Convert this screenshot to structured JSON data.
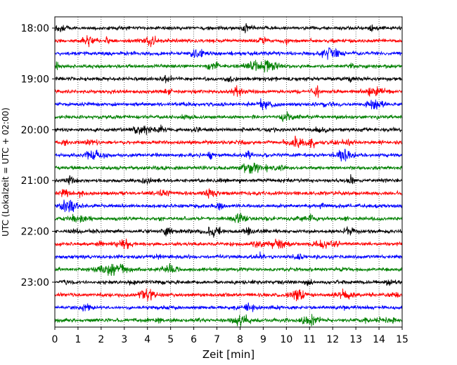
{
  "chart_data": {
    "type": "line",
    "title": "",
    "xlabel": "Zeit  [min]",
    "ylabel": "UTC (Lokalzeit = UTC + 02:00)",
    "xlim": [
      0,
      15
    ],
    "x_ticks": [
      "0",
      "1",
      "2",
      "3",
      "4",
      "5",
      "6",
      "7",
      "8",
      "9",
      "10",
      "11",
      "12",
      "13",
      "14",
      "15"
    ],
    "y_ticks": [
      "18:00",
      "19:00",
      "20:00",
      "21:00",
      "22:00",
      "23:00"
    ],
    "grid": "vertical-dotted",
    "trace_colors": [
      "#000000",
      "#ff0000",
      "#0000ff",
      "#008000"
    ],
    "rows_per_hour": 4,
    "series": [
      {
        "name": "18:00",
        "color": "#000000"
      },
      {
        "name": "18:15",
        "color": "#ff0000"
      },
      {
        "name": "18:30",
        "color": "#0000ff"
      },
      {
        "name": "18:45",
        "color": "#008000"
      },
      {
        "name": "19:00",
        "color": "#000000"
      },
      {
        "name": "19:15",
        "color": "#ff0000"
      },
      {
        "name": "19:30",
        "color": "#0000ff"
      },
      {
        "name": "19:45",
        "color": "#008000"
      },
      {
        "name": "20:00",
        "color": "#000000"
      },
      {
        "name": "20:15",
        "color": "#ff0000"
      },
      {
        "name": "20:30",
        "color": "#0000ff"
      },
      {
        "name": "20:45",
        "color": "#008000"
      },
      {
        "name": "21:00",
        "color": "#000000"
      },
      {
        "name": "21:15",
        "color": "#ff0000"
      },
      {
        "name": "21:30",
        "color": "#0000ff"
      },
      {
        "name": "21:45",
        "color": "#008000"
      },
      {
        "name": "22:00",
        "color": "#000000"
      },
      {
        "name": "22:15",
        "color": "#ff0000"
      },
      {
        "name": "22:30",
        "color": "#0000ff"
      },
      {
        "name": "22:45",
        "color": "#008000"
      },
      {
        "name": "23:00",
        "color": "#000000"
      },
      {
        "name": "23:15",
        "color": "#ff0000"
      },
      {
        "name": "23:30",
        "color": "#0000ff"
      },
      {
        "name": "23:45",
        "color": "#008000"
      }
    ]
  }
}
